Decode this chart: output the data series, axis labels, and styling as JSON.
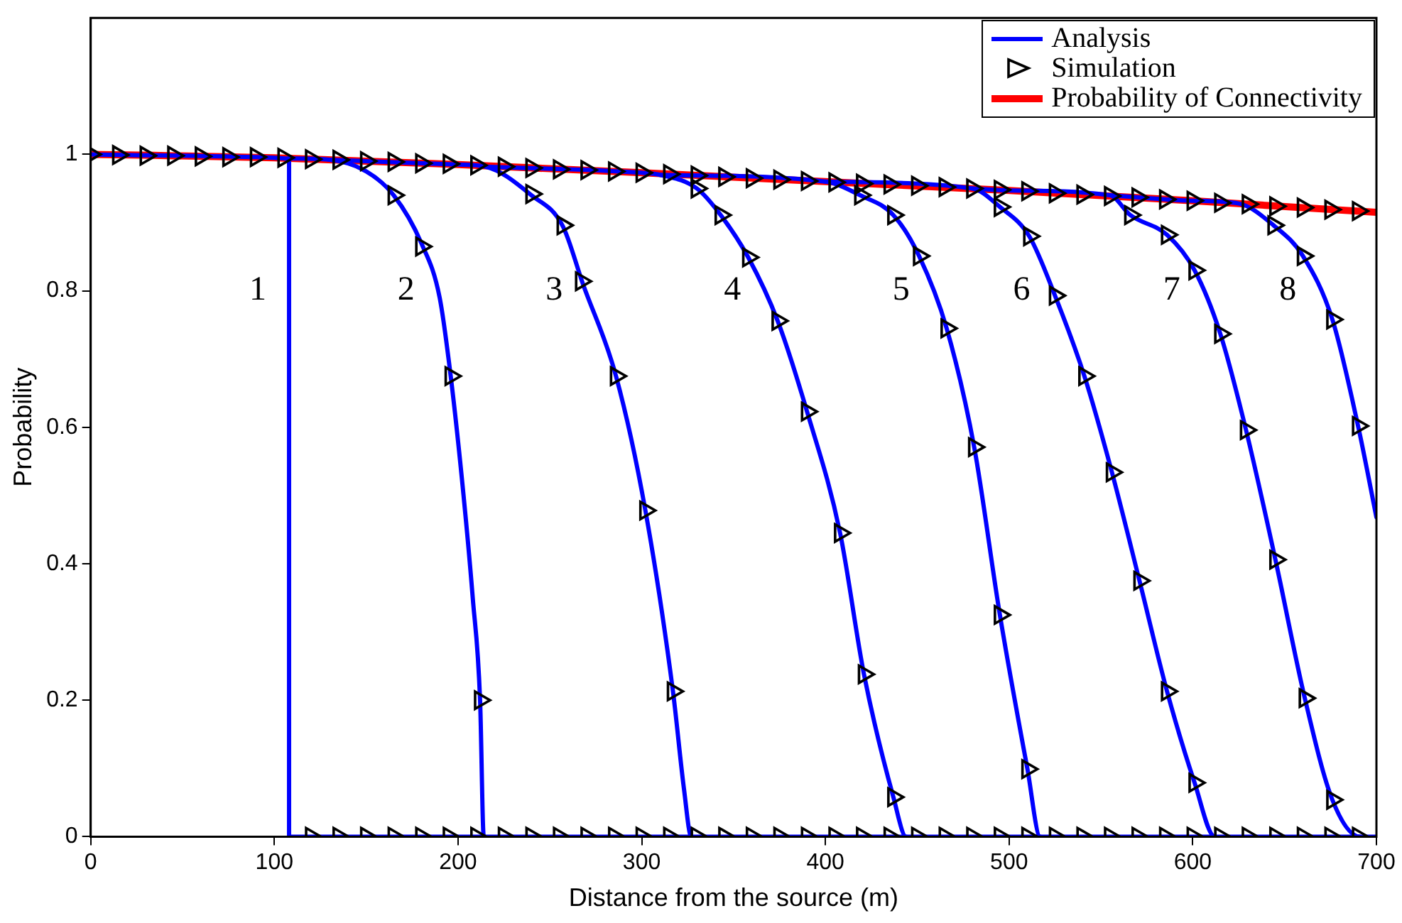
{
  "chart_data": {
    "type": "line",
    "xlabel": "Distance from the source (m)",
    "ylabel": "Probability",
    "xlim": [
      0,
      700
    ],
    "xticks": [
      0,
      100,
      200,
      300,
      400,
      500,
      600,
      700
    ],
    "ylim": [
      0,
      1.2
    ],
    "yticks": [
      0,
      0.2,
      0.4,
      0.6,
      0.8,
      1
    ],
    "grid": false,
    "legend": "top right",
    "marker": "none",
    "line_style": "solid",
    "annotations": [
      "1",
      "2",
      "3",
      "4",
      "5",
      "6",
      "7",
      "8"
    ],
    "series": [
      {
        "name": "Analysis",
        "type": "line",
        "color": "#0000ff",
        "x": [
          0,
          100,
          108,
          108,
          214
        ],
        "values": [
          1,
          0.995,
          0.994,
          0,
          0
        ]
      },
      {
        "type": "line",
        "color": "#0000ff",
        "x": [
          108,
          130,
          150,
          165,
          180,
          190,
          196,
          203,
          208,
          212,
          214,
          327
        ],
        "values": [
          0.994,
          0.992,
          0.975,
          0.94,
          0.87,
          0.79,
          0.675,
          0.5,
          0.35,
          0.2,
          0,
          0
        ]
      },
      {
        "type": "line",
        "color": "#0000ff",
        "x": [
          130,
          200,
          215,
          240,
          257,
          268,
          286,
          302,
          317,
          323,
          327,
          444
        ],
        "values": [
          0.992,
          0.985,
          0.982,
          0.94,
          0.895,
          0.81,
          0.675,
          0.478,
          0.213,
          0.07,
          0,
          0
        ]
      },
      {
        "type": "line",
        "color": "#0000ff",
        "x": [
          215,
          300,
          310,
          330,
          343,
          358,
          374,
          390,
          408,
          421,
          437,
          444,
          517
        ],
        "values": [
          0.982,
          0.973,
          0.97,
          0.95,
          0.911,
          0.849,
          0.756,
          0.623,
          0.445,
          0.238,
          0.058,
          0,
          0
        ]
      },
      {
        "type": "line",
        "color": "#0000ff",
        "x": [
          310,
          400,
          419,
          437,
          451,
          466,
          481,
          495,
          510,
          517,
          612
        ],
        "values": [
          0.97,
          0.96,
          0.94,
          0.911,
          0.851,
          0.745,
          0.571,
          0.325,
          0.099,
          0,
          0
        ]
      },
      {
        "type": "line",
        "color": "#0000ff",
        "x": [
          400,
          480,
          495,
          511,
          525,
          541,
          556,
          571,
          586,
          601,
          612,
          691
        ],
        "values": [
          0.96,
          0.95,
          0.923,
          0.88,
          0.793,
          0.675,
          0.534,
          0.375,
          0.213,
          0.079,
          0,
          0
        ]
      },
      {
        "type": "line",
        "color": "#0000ff",
        "x": [
          480,
          500,
          555,
          566,
          586,
          601,
          615,
          629,
          645,
          661,
          676,
          691,
          700
        ],
        "values": [
          0.95,
          0.947,
          0.94,
          0.911,
          0.882,
          0.83,
          0.737,
          0.596,
          0.406,
          0.203,
          0.054,
          0,
          0
        ]
      },
      {
        "type": "line",
        "color": "#0000ff",
        "x": [
          555,
          600,
          625,
          644,
          660,
          676,
          690,
          700
        ],
        "values": [
          0.94,
          0.932,
          0.928,
          0.896,
          0.851,
          0.758,
          0.602,
          0.468
        ]
      },
      {
        "name": "Simulation",
        "type": "scatter",
        "color": "#000000",
        "marker": "triangle",
        "x": [
          0,
          15,
          30,
          45,
          60,
          75,
          90,
          105,
          120,
          135,
          150,
          165,
          180,
          195,
          210,
          225,
          240,
          255,
          270,
          285,
          300,
          315,
          330,
          345,
          360,
          375,
          390,
          405,
          420,
          435,
          450,
          465,
          480,
          495,
          510,
          525,
          540,
          555,
          570,
          585,
          600,
          615,
          630,
          645,
          660,
          675,
          690,
          120,
          135,
          150,
          165,
          180,
          195,
          210,
          225,
          240,
          255,
          270,
          285,
          300,
          315,
          330,
          345,
          360,
          375,
          390,
          405,
          420,
          435,
          450,
          465,
          480,
          495,
          510,
          525,
          540,
          555,
          570,
          585,
          600,
          615,
          630,
          645,
          660,
          675,
          690,
          165,
          180,
          196,
          212,
          240,
          257,
          267,
          286,
          302,
          317,
          330,
          343,
          358,
          374,
          390,
          408,
          421,
          437,
          419,
          437,
          451,
          466,
          481,
          495,
          510,
          495,
          511,
          525,
          541,
          556,
          571,
          586,
          601,
          566,
          586,
          601,
          615,
          629,
          645,
          661,
          676,
          644,
          660,
          676,
          690
        ],
        "values": [
          1,
          0.999,
          0.998,
          0.998,
          0.997,
          0.996,
          0.996,
          0.995,
          0.993,
          0.992,
          0.99,
          0.989,
          0.987,
          0.986,
          0.984,
          0.982,
          0.98,
          0.978,
          0.977,
          0.975,
          0.973,
          0.971,
          0.969,
          0.967,
          0.965,
          0.963,
          0.961,
          0.959,
          0.957,
          0.956,
          0.954,
          0.952,
          0.95,
          0.948,
          0.946,
          0.943,
          0.941,
          0.939,
          0.937,
          0.934,
          0.932,
          0.929,
          0.927,
          0.924,
          0.922,
          0.919,
          0.917,
          0,
          0,
          0,
          0,
          0,
          0,
          0,
          0,
          0,
          0,
          0,
          0,
          0,
          0,
          0,
          0,
          0,
          0,
          0,
          0,
          0,
          0,
          0,
          0,
          0,
          0,
          0,
          0,
          0,
          0,
          0,
          0,
          0,
          0,
          0,
          0,
          0,
          0,
          0,
          0.94,
          0.865,
          0.675,
          0.2,
          0.942,
          0.896,
          0.814,
          0.675,
          0.478,
          0.213,
          0.95,
          0.911,
          0.849,
          0.756,
          0.623,
          0.445,
          0.238,
          0.058,
          0.94,
          0.911,
          0.851,
          0.745,
          0.571,
          0.325,
          0.099,
          0.923,
          0.88,
          0.793,
          0.675,
          0.534,
          0.375,
          0.213,
          0.079,
          0.911,
          0.882,
          0.83,
          0.737,
          0.596,
          0.406,
          0.203,
          0.054,
          0.896,
          0.851,
          0.758,
          0.602
        ]
      },
      {
        "name": "Probability of Connectivity",
        "type": "line",
        "color": "#ff0000",
        "x": [
          0,
          100,
          200,
          300,
          400,
          500,
          600,
          700
        ],
        "values": [
          1,
          0.995,
          0.985,
          0.973,
          0.96,
          0.947,
          0.932,
          0.915
        ]
      }
    ]
  }
}
